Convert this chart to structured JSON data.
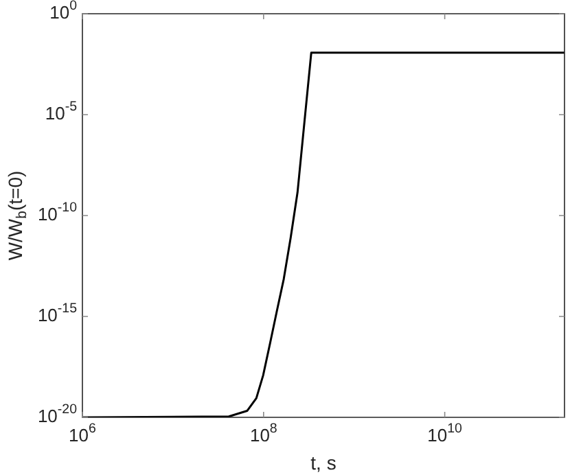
{
  "chart_data": {
    "type": "line",
    "xlabel": "t, s",
    "ylabel": "W/W$_{b}$(t=0)",
    "log": "xy",
    "grid": false,
    "legend": false,
    "marker": "none",
    "line_style": "solid",
    "xlim": [
      1000000.0,
      210000000000.0
    ],
    "ylim": [
      1e-20,
      1
    ],
    "xticks": [
      {
        "value": 1000000.0,
        "label": "10$^{6}$"
      },
      {
        "value": 100000000.0,
        "label": "10$^{8}$"
      },
      {
        "value": 10000000000.0,
        "label": "10$^{10}$"
      }
    ],
    "yticks": [
      {
        "value": 1e-20,
        "label": "10$^{-20}$"
      },
      {
        "value": 1e-15,
        "label": "10$^{-15}$"
      },
      {
        "value": 1e-10,
        "label": "10$^{-10}$"
      },
      {
        "value": 1e-05,
        "label": "10$^{-5}$"
      },
      {
        "value": 1,
        "label": "10$^{0}$"
      }
    ],
    "x": [
      1000000.0,
      41400000.0,
      65800000.0,
      83200000.0,
      98900000.0,
      118000000.0,
      140000000.0,
      167000000.0,
      199000000.0,
      237000000.0,
      272000000.0,
      336000000.0,
      210000000000.0
    ],
    "series": [
      {
        "color": "#000000",
        "values": [
          1e-20,
          1.1e-20,
          2.1e-20,
          8.9e-20,
          1.2e-18,
          4.7e-17,
          1.8e-15,
          7.1e-14,
          7.8e-12,
          1.4e-09,
          7.6e-07,
          0.0117,
          0.0117
        ]
      }
    ]
  }
}
